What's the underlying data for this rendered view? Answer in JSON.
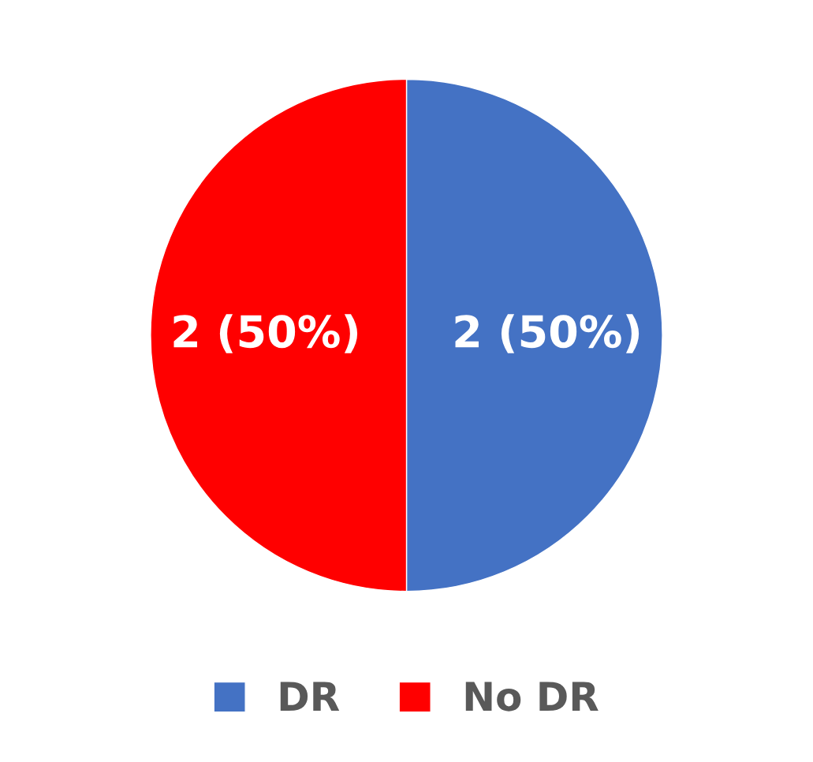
{
  "chart_data": {
    "type": "pie",
    "categories": [
      "DR",
      "No DR"
    ],
    "values": [
      2,
      2
    ],
    "colors": [
      "#4472c4",
      "#ff0000"
    ],
    "value_labels": [
      "2 (50%)",
      "2 (50%)"
    ],
    "legend": "bottom"
  }
}
